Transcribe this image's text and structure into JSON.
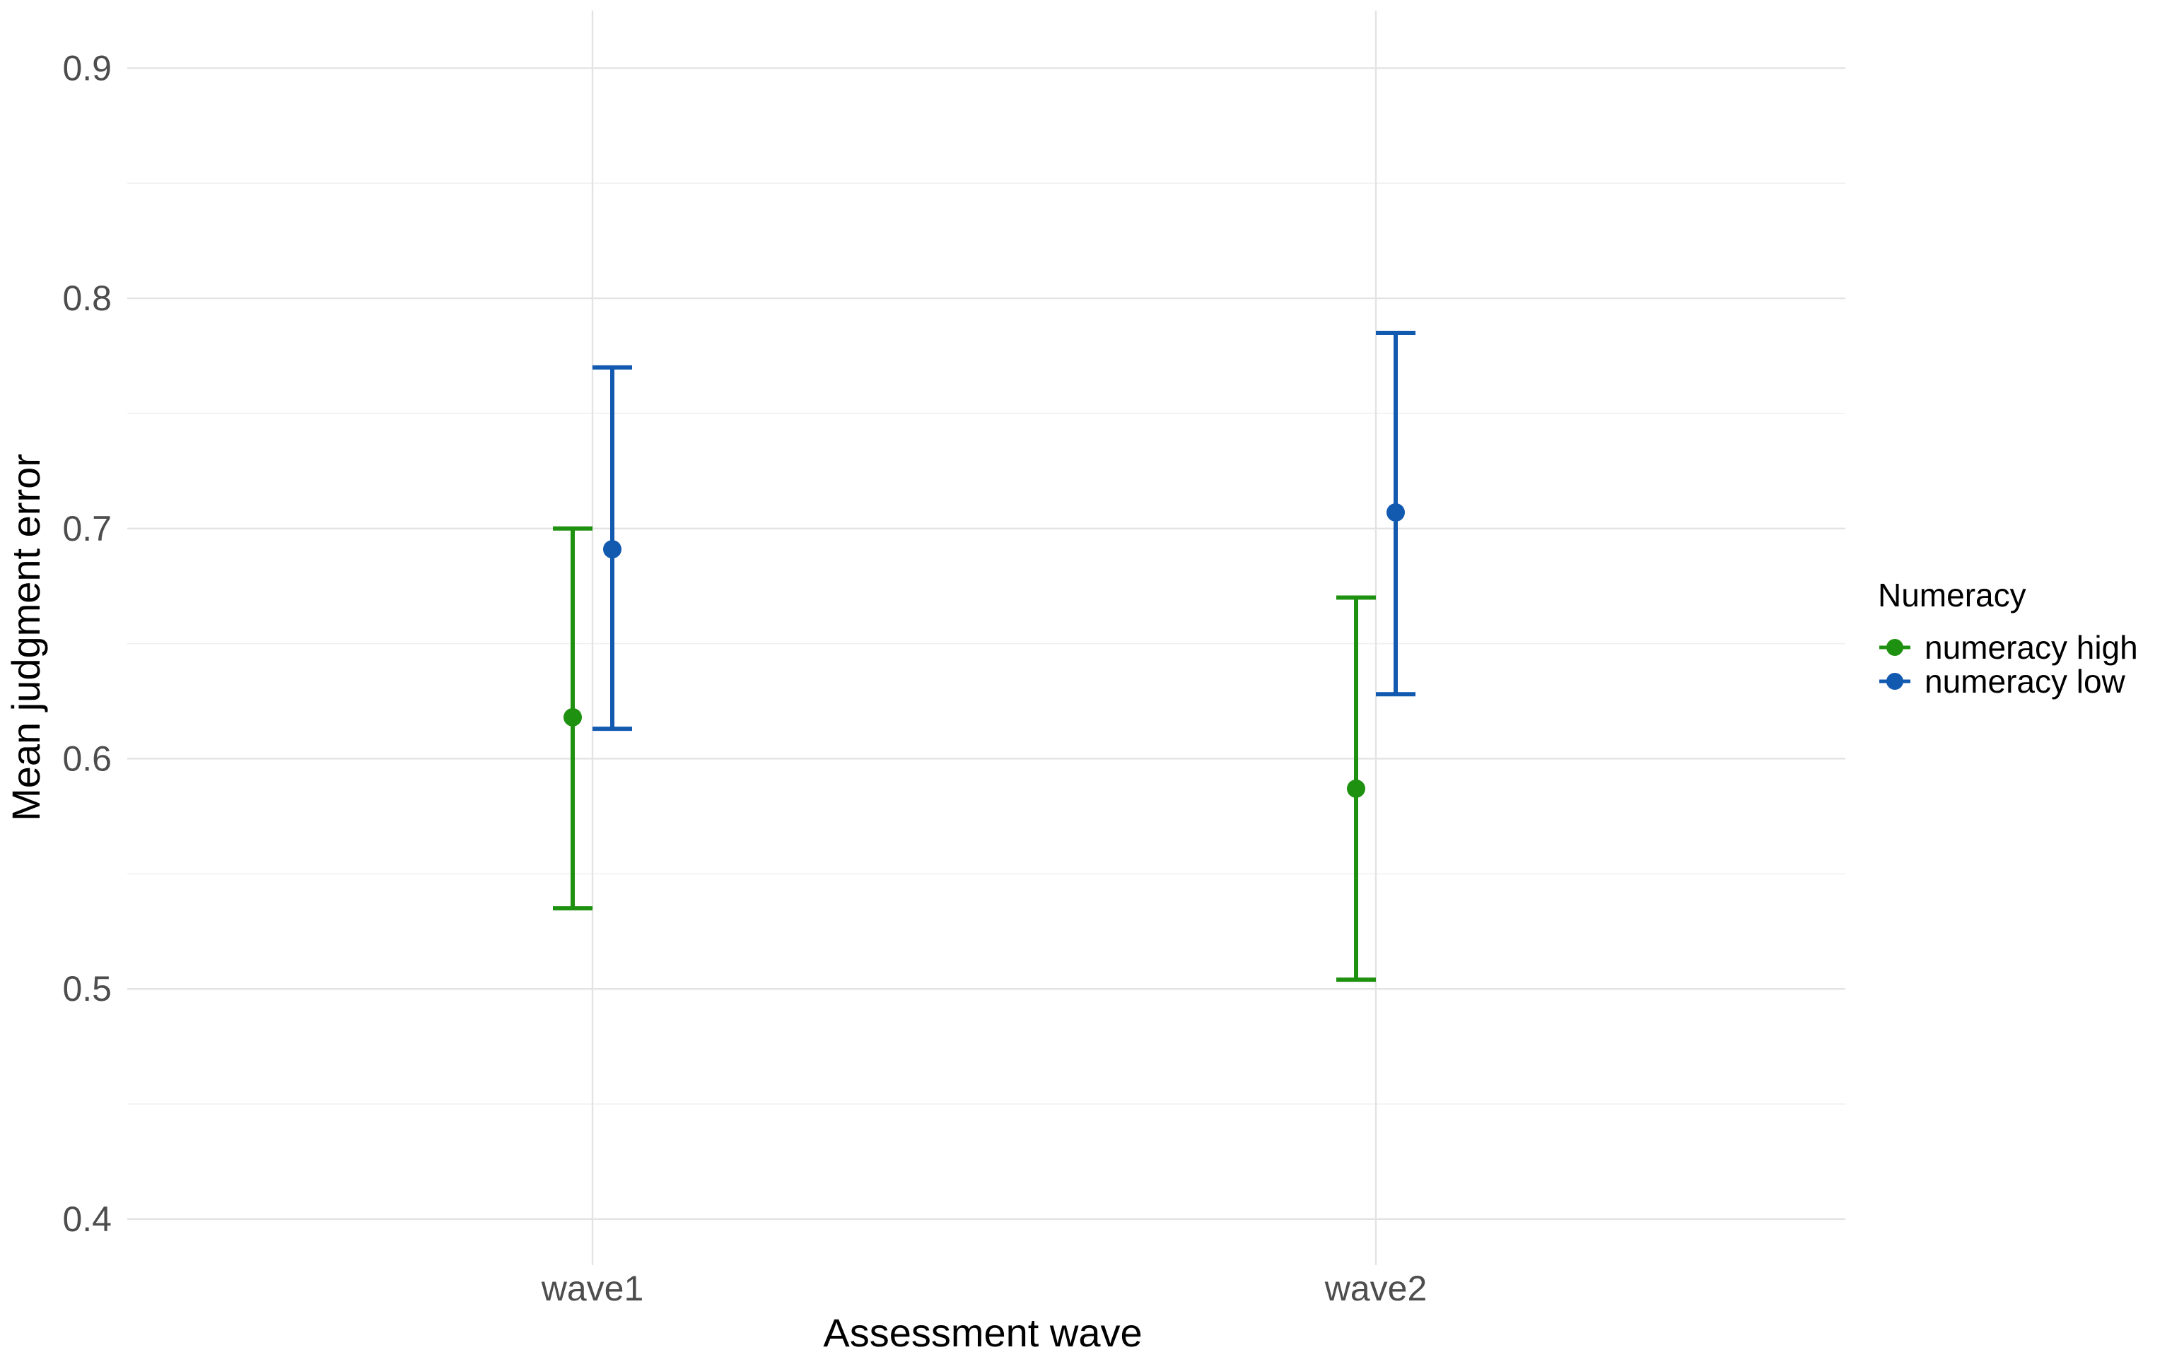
{
  "chart_data": {
    "type": "scatter",
    "title": "",
    "xlabel": "Assessment wave",
    "ylabel": "Mean judgment error",
    "categories": [
      "wave1",
      "wave2"
    ],
    "ylim": [
      0.38,
      0.925
    ],
    "yticks": [
      "0.4",
      "0.5",
      "0.6",
      "0.7",
      "0.8",
      "0.9"
    ],
    "grid": true,
    "legend": {
      "title": "Numeracy",
      "position": "right"
    },
    "error_bars": true,
    "series": [
      {
        "name": "numeracy high",
        "color": "#1f9110",
        "values": [
          0.618,
          0.587
        ],
        "lower": [
          0.535,
          0.504
        ],
        "upper": [
          0.7,
          0.67
        ]
      },
      {
        "name": "numeracy low",
        "color": "#1259b0",
        "values": [
          0.691,
          0.707
        ],
        "lower": [
          0.613,
          0.628
        ],
        "upper": [
          0.77,
          0.785
        ]
      }
    ]
  }
}
